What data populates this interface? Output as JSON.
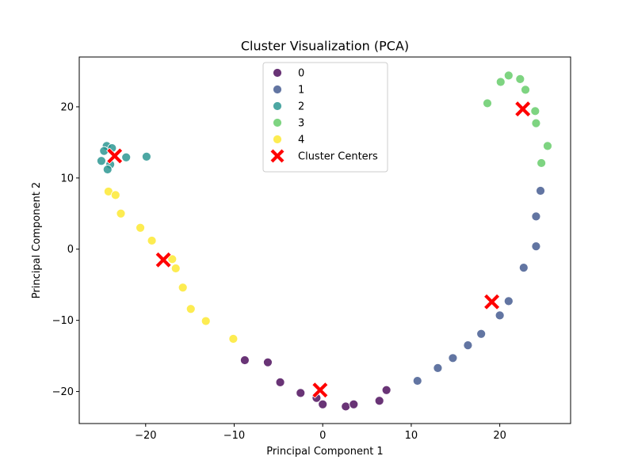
{
  "chart_data": {
    "type": "scatter",
    "title": "Cluster Visualization (PCA)",
    "xlabel": "Principal Component 1",
    "ylabel": "Principal Component 2",
    "xlim": [
      -27.5,
      28.0
    ],
    "ylim": [
      -24.5,
      27.0
    ],
    "xticks": [
      -20,
      -10,
      0,
      10,
      20
    ],
    "yticks": [
      -20,
      -10,
      0,
      10,
      20
    ],
    "grid": false,
    "legend": {
      "placement": "upper-center",
      "centers_label": "Cluster Centers"
    },
    "series": [
      {
        "name": "0",
        "color": "#440154",
        "points": [
          [
            -8.8,
            -15.6
          ],
          [
            -6.2,
            -15.9
          ],
          [
            -4.8,
            -18.7
          ],
          [
            -2.5,
            -20.2
          ],
          [
            -0.7,
            -20.9
          ],
          [
            0.0,
            -21.8
          ],
          [
            2.6,
            -22.1
          ],
          [
            3.5,
            -21.8
          ],
          [
            6.4,
            -21.3
          ],
          [
            7.2,
            -19.8
          ]
        ]
      },
      {
        "name": "1",
        "color": "#3b528b",
        "points": [
          [
            10.7,
            -18.5
          ],
          [
            13.0,
            -16.7
          ],
          [
            14.7,
            -15.3
          ],
          [
            16.4,
            -13.5
          ],
          [
            17.9,
            -11.9
          ],
          [
            20.0,
            -9.3
          ],
          [
            21.0,
            -7.3
          ],
          [
            22.7,
            -2.6
          ],
          [
            24.1,
            0.4
          ],
          [
            24.1,
            4.6
          ],
          [
            24.6,
            8.2
          ]
        ]
      },
      {
        "name": "2",
        "color": "#21918c",
        "points": [
          [
            -24.4,
            14.5
          ],
          [
            -23.8,
            14.2
          ],
          [
            -24.7,
            13.8
          ],
          [
            -22.2,
            12.9
          ],
          [
            -19.9,
            13.0
          ],
          [
            -25.0,
            12.4
          ],
          [
            -24.0,
            11.9
          ],
          [
            -24.3,
            11.2
          ]
        ]
      },
      {
        "name": "3",
        "color": "#5ec962",
        "points": [
          [
            18.6,
            20.5
          ],
          [
            20.1,
            23.5
          ],
          [
            21.0,
            24.4
          ],
          [
            22.3,
            23.9
          ],
          [
            22.9,
            22.4
          ],
          [
            24.0,
            19.4
          ],
          [
            24.1,
            17.7
          ],
          [
            24.7,
            12.1
          ],
          [
            25.4,
            14.5
          ]
        ]
      },
      {
        "name": "4",
        "color": "#fde725",
        "points": [
          [
            -24.2,
            8.1
          ],
          [
            -23.4,
            7.6
          ],
          [
            -22.8,
            5.0
          ],
          [
            -20.6,
            3.0
          ],
          [
            -19.3,
            1.2
          ],
          [
            -17.0,
            -1.4
          ],
          [
            -16.6,
            -2.7
          ],
          [
            -15.8,
            -5.4
          ],
          [
            -14.9,
            -8.4
          ],
          [
            -13.2,
            -10.1
          ],
          [
            -10.1,
            -12.6
          ]
        ]
      }
    ],
    "centers": {
      "name": "Cluster Centers",
      "color": "#ff0000",
      "marker": "X",
      "points": [
        [
          -0.3,
          -19.8
        ],
        [
          19.1,
          -7.4
        ],
        [
          -23.5,
          13.1
        ],
        [
          22.6,
          19.7
        ],
        [
          -18.0,
          -1.5
        ]
      ]
    }
  }
}
